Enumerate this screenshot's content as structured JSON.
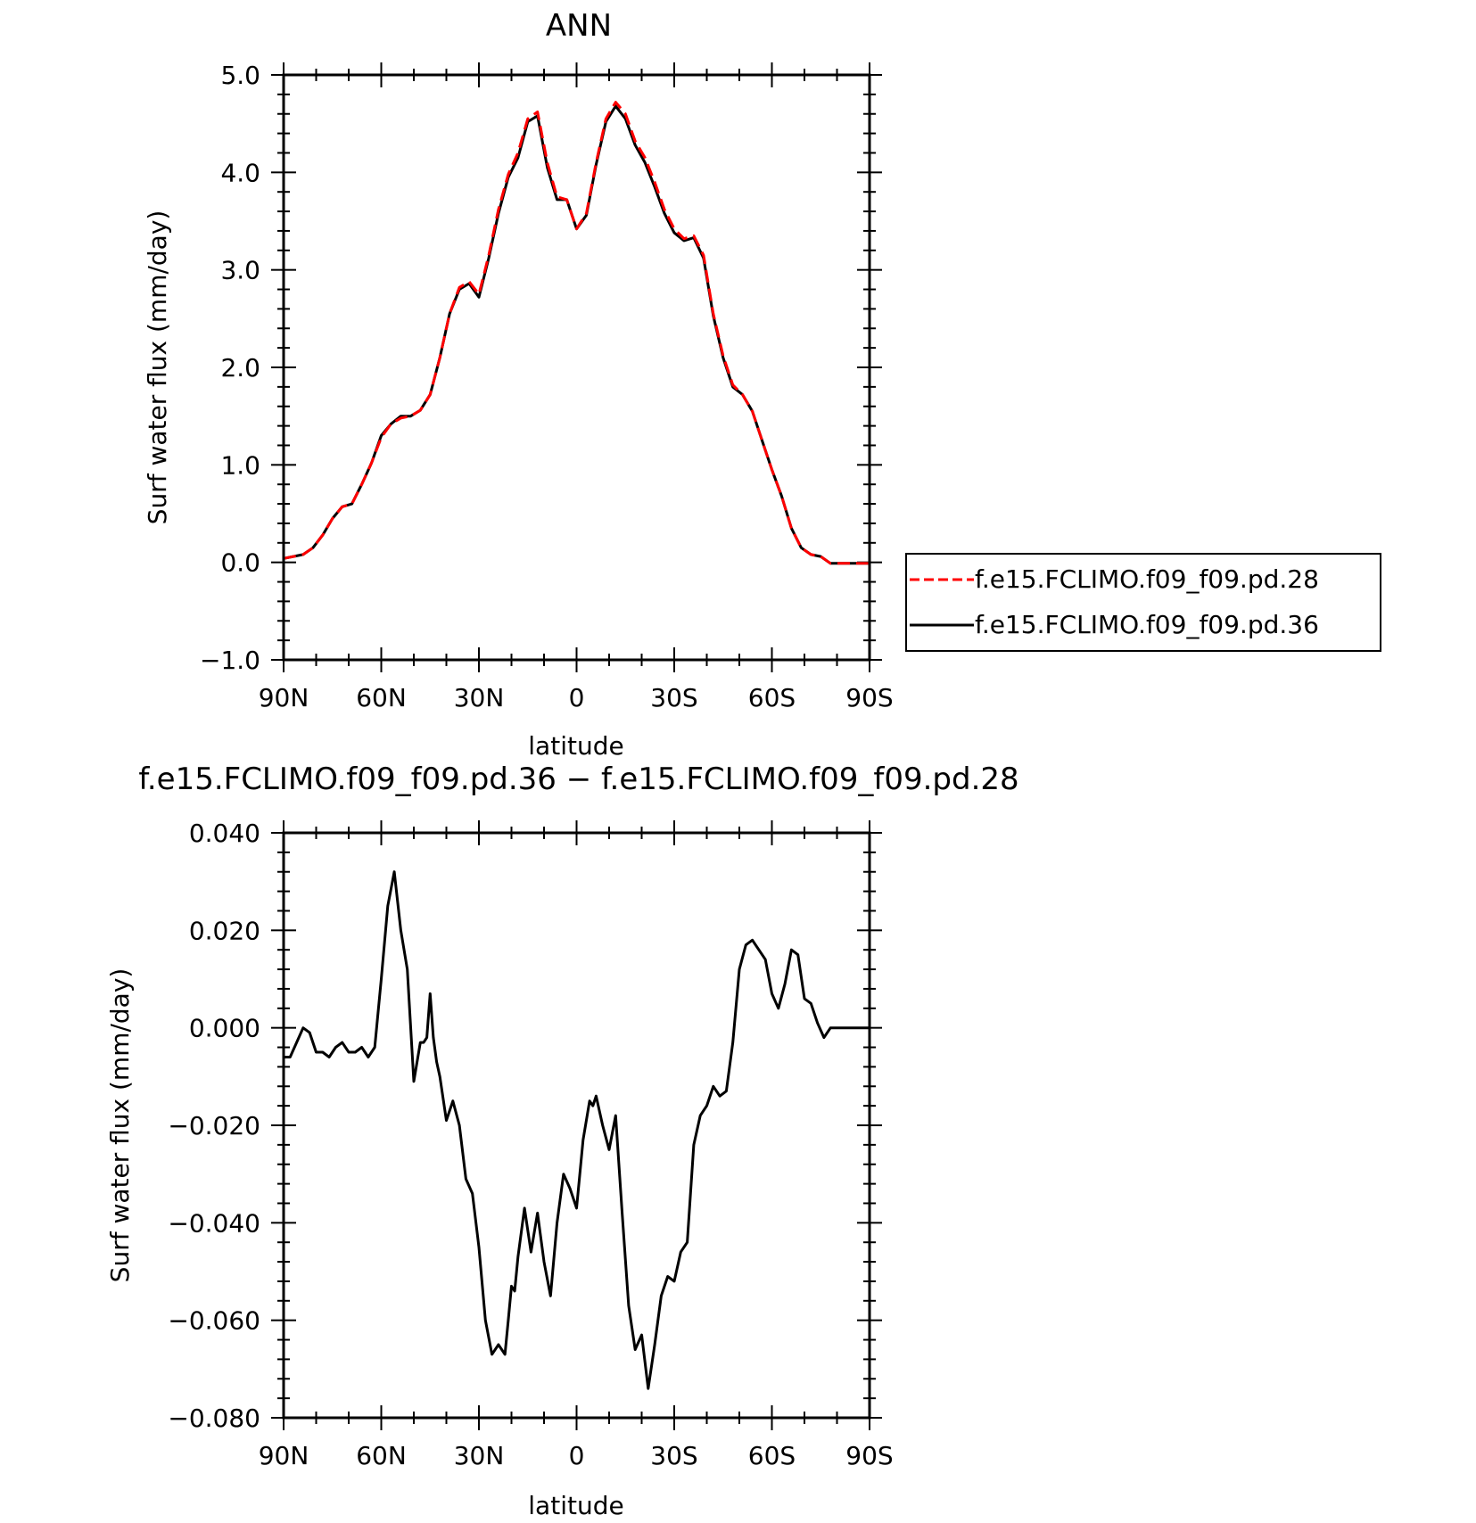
{
  "chart_data": [
    {
      "type": "line",
      "title": "ANN",
      "xlabel": "latitude",
      "ylabel": "Surf water flux (mm/day)",
      "x_ticks": [
        "90N",
        "60N",
        "30N",
        "0",
        "30S",
        "60S",
        "90S"
      ],
      "y_ticks": [
        "5.0",
        "4.0",
        "3.0",
        "2.0",
        "1.0",
        "0.0",
        "−1.0"
      ],
      "xlim": [
        90,
        -90
      ],
      "ylim": [
        -1.0,
        5.0
      ],
      "legend_position": "right",
      "x": [
        90,
        87,
        84,
        81,
        78,
        75,
        72,
        69,
        66,
        63,
        60,
        57,
        54,
        51,
        48,
        45,
        42,
        39,
        36,
        33,
        30,
        27,
        24,
        21,
        18,
        15,
        12,
        9,
        6,
        3,
        0,
        -3,
        -6,
        -9,
        -12,
        -15,
        -18,
        -21,
        -24,
        -27,
        -30,
        -33,
        -36,
        -39,
        -42,
        -45,
        -48,
        -51,
        -54,
        -57,
        -60,
        -63,
        -66,
        -69,
        -72,
        -75,
        -78,
        -81,
        -84,
        -87,
        -90
      ],
      "series": [
        {
          "name": "f.e15.FCLIMO.f09_f09.pd.28",
          "color": "#ff0000",
          "dash": "dashed",
          "values": [
            0.04,
            0.06,
            0.08,
            0.15,
            0.28,
            0.45,
            0.57,
            0.6,
            0.8,
            1.02,
            1.28,
            1.42,
            1.48,
            1.5,
            1.56,
            1.72,
            2.1,
            2.55,
            2.82,
            2.88,
            2.75,
            3.15,
            3.62,
            3.98,
            4.2,
            4.55,
            4.62,
            4.1,
            3.75,
            3.72,
            3.42,
            3.58,
            4.1,
            4.55,
            4.72,
            4.6,
            4.32,
            4.15,
            3.9,
            3.62,
            3.42,
            3.32,
            3.35,
            3.15,
            2.55,
            2.12,
            1.82,
            1.72,
            1.55,
            1.25,
            0.95,
            0.68,
            0.35,
            0.15,
            0.08,
            0.06,
            -0.01,
            -0.01,
            -0.01,
            -0.01,
            -0.01
          ]
        },
        {
          "name": "f.e15.FCLIMO.f09_f09.pd.36",
          "color": "#000000",
          "dash": "solid",
          "values": [
            0.04,
            0.06,
            0.08,
            0.15,
            0.28,
            0.45,
            0.57,
            0.6,
            0.8,
            1.02,
            1.3,
            1.42,
            1.5,
            1.5,
            1.56,
            1.72,
            2.1,
            2.55,
            2.8,
            2.86,
            2.72,
            3.12,
            3.58,
            3.95,
            4.15,
            4.52,
            4.58,
            4.05,
            3.72,
            3.72,
            3.42,
            3.56,
            4.08,
            4.52,
            4.68,
            4.55,
            4.28,
            4.1,
            3.85,
            3.58,
            3.38,
            3.3,
            3.33,
            3.12,
            2.53,
            2.1,
            1.8,
            1.72,
            1.55,
            1.25,
            0.95,
            0.68,
            0.35,
            0.15,
            0.08,
            0.06,
            -0.01,
            -0.01,
            -0.01,
            -0.01,
            -0.01
          ]
        }
      ]
    },
    {
      "type": "line",
      "title": "f.e15.FCLIMO.f09_f09.pd.36 − f.e15.FCLIMO.f09_f09.pd.28",
      "xlabel": "latitude",
      "ylabel": "Surf water flux (mm/day)",
      "x_ticks": [
        "90N",
        "60N",
        "30N",
        "0",
        "30S",
        "60S",
        "90S"
      ],
      "y_ticks": [
        "0.040",
        "0.020",
        "0.000",
        "−0.020",
        "−0.040",
        "−0.060",
        "−0.080"
      ],
      "xlim": [
        90,
        -90
      ],
      "ylim": [
        -0.08,
        0.04
      ],
      "series": [
        {
          "color": "#000000",
          "dash": "solid",
          "x": [
            90,
            88,
            86,
            84,
            82,
            80,
            78,
            76,
            74,
            72,
            70,
            68,
            66,
            64,
            62,
            60,
            58,
            56,
            54,
            52,
            50,
            48,
            47,
            46,
            45,
            44,
            43,
            42,
            40,
            38,
            36,
            34,
            32,
            30,
            28,
            26,
            24,
            22,
            21,
            20,
            19,
            18,
            16,
            14,
            12,
            10,
            8,
            6,
            4,
            2,
            0,
            -2,
            -4,
            -5,
            -6,
            -8,
            -10,
            -12,
            -14,
            -16,
            -18,
            -20,
            -22,
            -24,
            -26,
            -28,
            -30,
            -32,
            -34,
            -36,
            -38,
            -40,
            -42,
            -44,
            -46,
            -48,
            -50,
            -52,
            -54,
            -56,
            -58,
            -60,
            -62,
            -64,
            -66,
            -68,
            -70,
            -72,
            -74,
            -76,
            -78,
            -80,
            -82,
            -84,
            -86,
            -88,
            -90
          ],
          "values": [
            -0.006,
            -0.006,
            -0.003,
            0.0,
            -0.001,
            -0.005,
            -0.005,
            -0.006,
            -0.004,
            -0.003,
            -0.005,
            -0.005,
            -0.004,
            -0.006,
            -0.004,
            0.01,
            0.025,
            0.032,
            0.02,
            0.012,
            -0.011,
            -0.003,
            -0.003,
            -0.002,
            0.007,
            -0.002,
            -0.007,
            -0.01,
            -0.019,
            -0.015,
            -0.02,
            -0.031,
            -0.034,
            -0.045,
            -0.06,
            -0.067,
            -0.065,
            -0.067,
            -0.06,
            -0.053,
            -0.054,
            -0.047,
            -0.037,
            -0.046,
            -0.038,
            -0.048,
            -0.055,
            -0.04,
            -0.03,
            -0.033,
            -0.037,
            -0.023,
            -0.015,
            -0.016,
            -0.014,
            -0.02,
            -0.025,
            -0.018,
            -0.038,
            -0.057,
            -0.066,
            -0.063,
            -0.074,
            -0.065,
            -0.055,
            -0.051,
            -0.052,
            -0.046,
            -0.044,
            -0.024,
            -0.018,
            -0.016,
            -0.012,
            -0.014,
            -0.013,
            -0.003,
            0.012,
            0.017,
            0.018,
            0.016,
            0.014,
            0.007,
            0.004,
            0.009,
            0.016,
            0.015,
            0.006,
            0.005,
            0.001,
            -0.002,
            0.0,
            0.0,
            0.0,
            0.0,
            0.0,
            0.0,
            0.0
          ]
        }
      ]
    }
  ]
}
